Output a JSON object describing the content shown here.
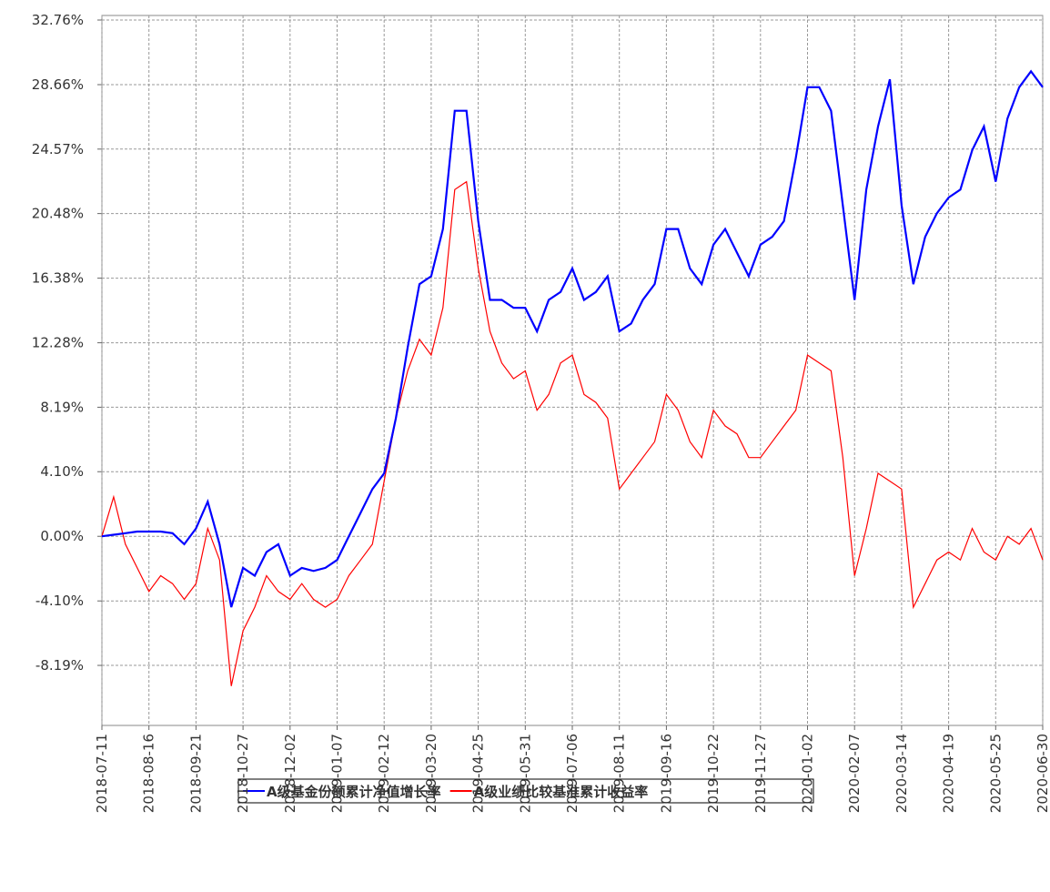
{
  "chart_data": {
    "type": "line",
    "x": [
      "2018-07-11",
      "2018-07-20",
      "2018-07-29",
      "2018-08-07",
      "2018-08-16",
      "2018-08-25",
      "2018-09-03",
      "2018-09-12",
      "2018-09-21",
      "2018-09-30",
      "2018-10-09",
      "2018-10-18",
      "2018-10-27",
      "2018-11-05",
      "2018-11-14",
      "2018-11-23",
      "2018-12-02",
      "2018-12-11",
      "2018-12-20",
      "2018-12-29",
      "2019-01-07",
      "2019-01-16",
      "2019-01-25",
      "2019-02-03",
      "2019-02-12",
      "2019-02-21",
      "2019-03-02",
      "2019-03-11",
      "2019-03-20",
      "2019-03-29",
      "2019-04-07",
      "2019-04-16",
      "2019-04-25",
      "2019-05-04",
      "2019-05-13",
      "2019-05-22",
      "2019-05-31",
      "2019-06-09",
      "2019-06-18",
      "2019-06-27",
      "2019-07-06",
      "2019-07-15",
      "2019-07-24",
      "2019-08-02",
      "2019-08-11",
      "2019-08-20",
      "2019-08-29",
      "2019-09-07",
      "2019-09-16",
      "2019-09-25",
      "2019-10-04",
      "2019-10-13",
      "2019-10-22",
      "2019-10-31",
      "2019-11-09",
      "2019-11-18",
      "2019-11-27",
      "2019-12-06",
      "2019-12-15",
      "2019-12-24",
      "2020-01-02",
      "2020-01-11",
      "2020-01-20",
      "2020-01-29",
      "2020-02-07",
      "2020-02-16",
      "2020-02-25",
      "2020-03-05",
      "2020-03-14",
      "2020-03-23",
      "2020-04-01",
      "2020-04-10",
      "2020-04-19",
      "2020-04-28",
      "2020-05-07",
      "2020-05-16",
      "2020-05-25",
      "2020-06-03",
      "2020-06-12",
      "2020-06-21",
      "2020-06-30"
    ],
    "series": [
      {
        "name": "A级基金份额累计净值增长率",
        "color": "#0000ff",
        "values": [
          0,
          0.1,
          0.2,
          0.3,
          0.3,
          0.3,
          0.2,
          -0.5,
          0.5,
          2.2,
          -0.5,
          -4.5,
          -2.0,
          -2.5,
          -1.0,
          -0.5,
          -2.5,
          -2.0,
          -2.2,
          -2.0,
          -1.5,
          0,
          1.5,
          3.0,
          4.0,
          7.5,
          12.0,
          16,
          16.5,
          19.5,
          27,
          27,
          20,
          15,
          15,
          14.5,
          14.5,
          13,
          15,
          15.5,
          17,
          15,
          15.5,
          16.5,
          13,
          13.5,
          15,
          16,
          19.5,
          19.5,
          17,
          16,
          18.5,
          19.5,
          18,
          16.5,
          18.5,
          19,
          20,
          24,
          28.5,
          28.5,
          27,
          21,
          15,
          22,
          26,
          29,
          21,
          16,
          19,
          20.5,
          21.5,
          22,
          24.5,
          26,
          22.5,
          26.5,
          28.5,
          29.5,
          28.5
        ]
      },
      {
        "name": "A级业绩比较基准累计收益率",
        "color": "#ff0000",
        "values": [
          0,
          2.5,
          -0.5,
          -2.0,
          -3.5,
          -2.5,
          -3.0,
          -4.0,
          -3.0,
          0.5,
          -1.5,
          -9.5,
          -6.0,
          -4.5,
          -2.5,
          -3.5,
          -4.0,
          -3.0,
          -4.0,
          -4.5,
          -4.0,
          -2.5,
          -1.5,
          -0.5,
          3.5,
          7.5,
          10.5,
          12.5,
          11.5,
          14.5,
          22,
          22.5,
          17,
          13,
          11,
          10,
          10.5,
          8,
          9,
          11,
          11.5,
          9,
          8.5,
          7.5,
          3,
          4,
          5,
          6,
          9,
          8,
          6,
          5,
          8,
          7,
          6.5,
          5,
          5,
          6,
          7,
          8,
          11.5,
          11,
          10.5,
          5,
          -2.5,
          0.5,
          4,
          3.5,
          3,
          -4.5,
          -3,
          -1.5,
          -1,
          -1.5,
          0.5,
          -1,
          -1.5,
          0,
          -0.5,
          0.5,
          -1.5
        ]
      }
    ],
    "xlim": [
      "2018-07-11",
      "2020-06-30"
    ],
    "xticks": [
      "2018-07-11",
      "2018-08-16",
      "2018-09-21",
      "2018-10-27",
      "2018-12-02",
      "2019-01-07",
      "2019-02-12",
      "2019-03-20",
      "2019-04-25",
      "2019-05-31",
      "2019-07-06",
      "2019-08-11",
      "2019-09-16",
      "2019-10-22",
      "2019-11-27",
      "2020-01-02",
      "2020-02-07",
      "2020-03-14",
      "2020-04-19",
      "2020-05-25",
      "2020-06-30"
    ],
    "ylim": [
      -12.0,
      32.76
    ],
    "yticks": [
      {
        "value": -8.19,
        "label": "-8.19%"
      },
      {
        "value": -4.1,
        "label": "-4.10%"
      },
      {
        "value": 0,
        "label": "0.00%"
      },
      {
        "value": 4.1,
        "label": "4.10%"
      },
      {
        "value": 8.19,
        "label": "8.19%"
      },
      {
        "value": 12.28,
        "label": "12.28%"
      },
      {
        "value": 16.38,
        "label": "16.38%"
      },
      {
        "value": 20.48,
        "label": "20.48%"
      },
      {
        "value": 24.57,
        "label": "24.57%"
      },
      {
        "value": 28.66,
        "label": "28.66%"
      },
      {
        "value": 32.76,
        "label": "32.76%"
      }
    ],
    "grid": true
  }
}
